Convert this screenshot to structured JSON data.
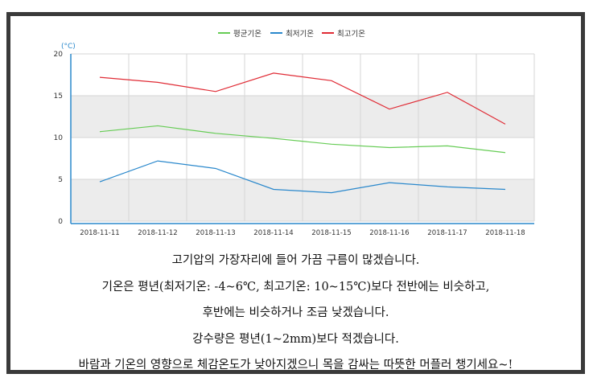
{
  "chart_data": {
    "type": "line",
    "unit_label": "(°C)",
    "x": [
      "2018-11-11",
      "2018-11-12",
      "2018-11-13",
      "2018-11-14",
      "2018-11-15",
      "2018-11-16",
      "2018-11-17",
      "2018-11-18"
    ],
    "yticks": [
      0,
      5,
      10,
      15,
      20
    ],
    "ylim": [
      0,
      20
    ],
    "series": [
      {
        "name": "평균기온",
        "color": "#66cc55",
        "values": [
          10.7,
          11.4,
          10.5,
          9.9,
          9.2,
          8.8,
          9.0,
          8.2
        ]
      },
      {
        "name": "최저기온",
        "color": "#2a88cc",
        "values": [
          4.7,
          7.2,
          6.3,
          3.8,
          3.4,
          4.6,
          4.1,
          3.8
        ]
      },
      {
        "name": "최고기온",
        "color": "#e02b35",
        "values": [
          17.2,
          16.6,
          15.5,
          17.7,
          16.8,
          13.4,
          15.4,
          11.6
        ]
      }
    ],
    "grid": true,
    "legend_position": "top-center",
    "band_color": "#ececec",
    "axis_color": "#2a88cc"
  },
  "notes": [
    "고기압의 가장자리에 들어 가끔 구름이 많겠습니다.",
    "기온은 평년(최저기온: -4~6℃, 최고기온: 10~15℃)보다 전반에는 비슷하고,",
    "후반에는 비슷하거나 조금 낮겠습니다.",
    "강수량은 평년(1~2mm)보다 적겠습니다.",
    "바람과 기온의 영향으로 체감온도가 낮아지겠으니 목을 감싸는 따뜻한 머플러 챙기세요~!"
  ]
}
